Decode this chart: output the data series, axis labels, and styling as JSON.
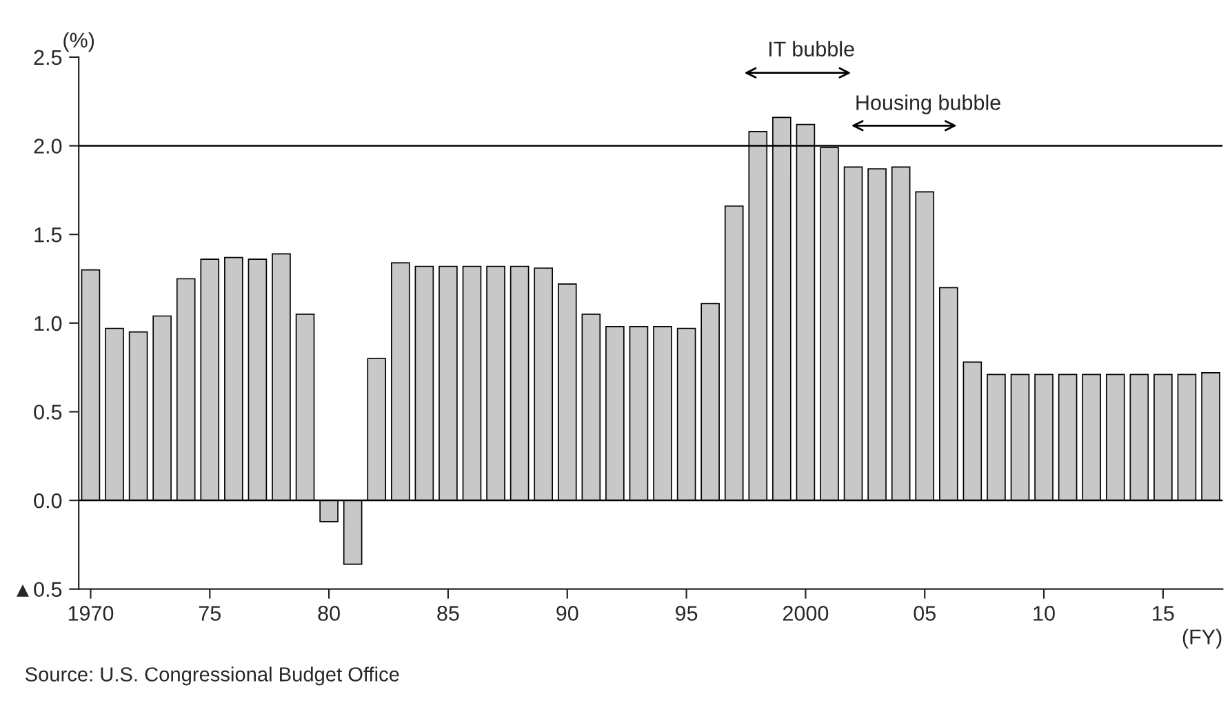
{
  "chart_data": {
    "type": "bar",
    "x": [
      1970,
      1971,
      1972,
      1973,
      1974,
      1975,
      1976,
      1977,
      1978,
      1979,
      1980,
      1981,
      1982,
      1983,
      1984,
      1985,
      1986,
      1987,
      1988,
      1989,
      1990,
      1991,
      1992,
      1993,
      1994,
      1995,
      1996,
      1997,
      1998,
      1999,
      2000,
      2001,
      2002,
      2003,
      2004,
      2005,
      2006,
      2007,
      2008,
      2009,
      2010,
      2011,
      2012,
      2013,
      2014,
      2015,
      2016,
      2017
    ],
    "values": [
      1.3,
      0.97,
      0.95,
      1.04,
      1.25,
      1.36,
      1.37,
      1.36,
      1.39,
      1.05,
      -0.12,
      -0.36,
      0.8,
      1.34,
      1.32,
      1.32,
      1.32,
      1.32,
      1.32,
      1.31,
      1.22,
      1.05,
      0.98,
      0.98,
      0.98,
      0.97,
      1.11,
      1.66,
      2.08,
      2.16,
      2.12,
      1.99,
      1.88,
      1.87,
      1.88,
      1.74,
      1.2,
      0.78,
      0.71,
      0.71,
      0.71,
      0.71,
      0.71,
      0.71,
      0.71,
      0.71,
      0.71,
      0.72
    ],
    "color": "#c8c8c8",
    "ylabel": "(%)",
    "xlabel": "(FY)",
    "xlim": [
      1969.5,
      2017.5
    ],
    "xticks": [
      1970,
      {
        "value": 1975,
        "label": "75"
      },
      {
        "value": 1980,
        "label": "80"
      },
      {
        "value": 1985,
        "label": "85"
      },
      {
        "value": 1990,
        "label": "90"
      },
      {
        "value": 1995,
        "label": "95"
      },
      2000,
      {
        "value": 2005,
        "label": "05"
      },
      {
        "value": 2010,
        "label": "10"
      },
      {
        "value": 2015,
        "label": "15"
      }
    ],
    "ylim": [
      -0.5,
      2.5
    ],
    "yticks": [
      {
        "value": -0.5,
        "label": "▲0.5"
      },
      {
        "value": 0,
        "label": "0.0"
      },
      {
        "value": 0.5,
        "label": "0.5"
      },
      {
        "value": 1,
        "label": "1.0"
      },
      {
        "value": 1.5,
        "label": "1.5"
      },
      {
        "value": 2,
        "label": "2.0"
      },
      {
        "value": 2.5,
        "label": "2.5"
      }
    ],
    "ref_lines": [
      {
        "axis": "y",
        "value": 0,
        "color": "#000000"
      },
      {
        "axis": "y",
        "value": 2.0,
        "color": "#000000"
      }
    ],
    "annotations": [
      "IT bubble",
      "Housing bubble",
      "Source: U.S. Congressional Budget Office"
    ],
    "grid": false,
    "legend": false
  }
}
